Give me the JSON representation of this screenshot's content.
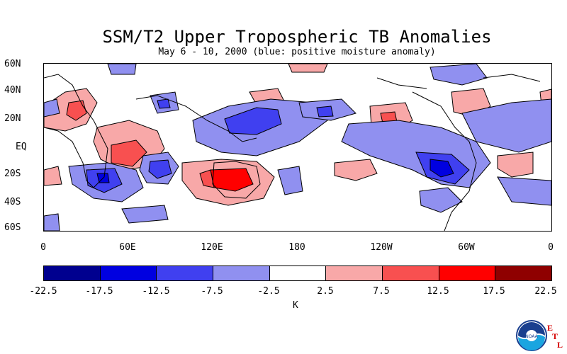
{
  "title": "SSM/T2 Upper Tropospheric TB Anomalies",
  "subtitle": "May 6 - 10, 2000 (blue: positive moisture anomaly)",
  "lat_labels": [
    "60N",
    "40N",
    "20N",
    "EQ",
    "20S",
    "40S",
    "60S"
  ],
  "lon_labels": [
    "0",
    "60E",
    "120E",
    "180",
    "120W",
    "60W",
    "0"
  ],
  "colorbar": {
    "labels": [
      "-22.5",
      "-17.5",
      "-12.5",
      "-7.5",
      "-2.5",
      "2.5",
      "7.5",
      "12.5",
      "17.5",
      "22.5"
    ],
    "colors": [
      "#00008f",
      "#0000e0",
      "#4040f0",
      "#9090f0",
      "#ffffff",
      "#f8a8a8",
      "#f85050",
      "#ff0000",
      "#8f0000"
    ],
    "unit": "K"
  },
  "logo": {
    "text": "NOAA",
    "letters": [
      "E",
      "T",
      "L"
    ]
  }
}
